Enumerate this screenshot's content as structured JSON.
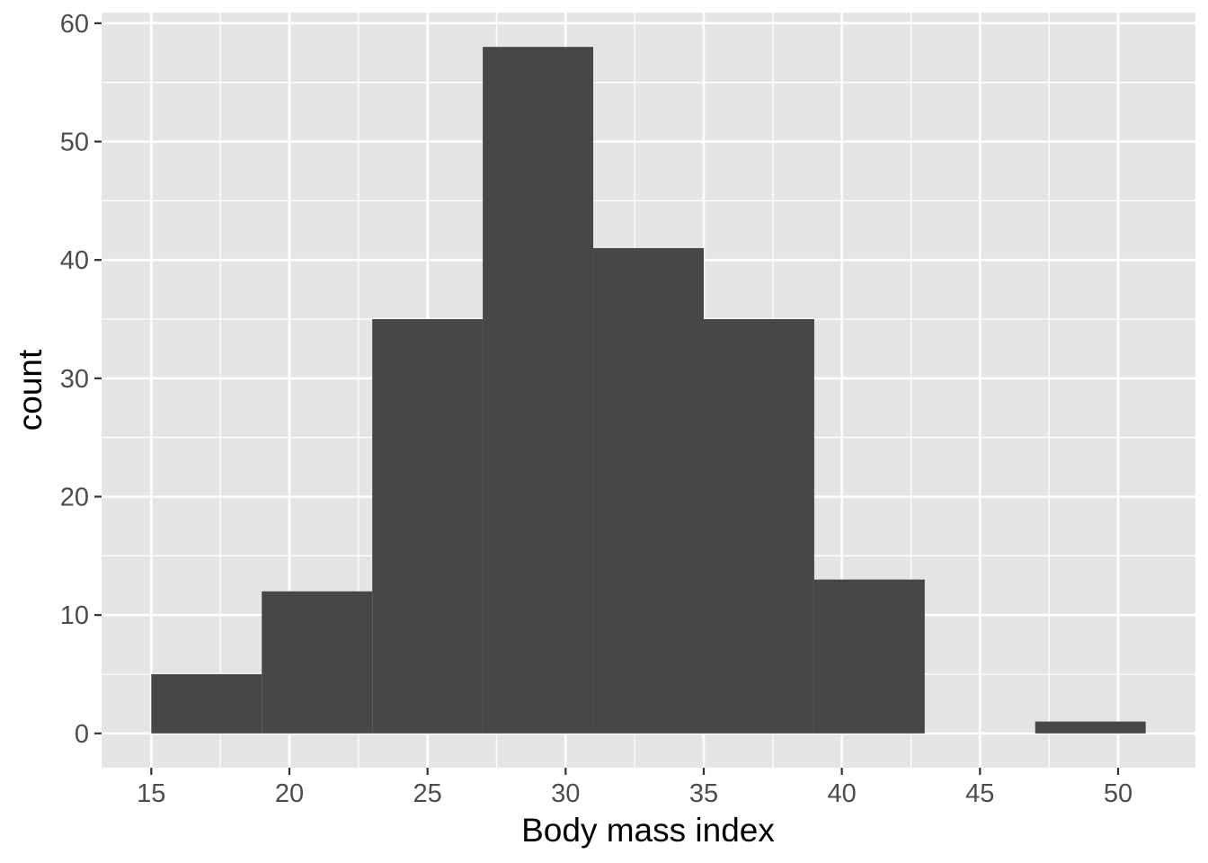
{
  "chart_data": {
    "type": "bar",
    "title": "",
    "xlabel": "Body mass index",
    "ylabel": "count",
    "xlim": [
      13.2,
      52.8
    ],
    "ylim": [
      -2.9,
      60.9
    ],
    "x_ticks": [
      15,
      20,
      25,
      30,
      35,
      40,
      45,
      50
    ],
    "x_tick_labels": [
      "15",
      "20",
      "25",
      "30",
      "35",
      "40",
      "45",
      "50"
    ],
    "y_ticks": [
      0,
      10,
      20,
      30,
      40,
      50,
      60
    ],
    "y_tick_labels": [
      "0",
      "10",
      "20",
      "30",
      "40",
      "50",
      "60"
    ],
    "bins": [
      {
        "x0": 15,
        "x1": 19,
        "count": 5
      },
      {
        "x0": 19,
        "x1": 23,
        "count": 12
      },
      {
        "x0": 23,
        "x1": 27,
        "count": 35
      },
      {
        "x0": 27,
        "x1": 31,
        "count": 58
      },
      {
        "x0": 31,
        "x1": 35,
        "count": 41
      },
      {
        "x0": 35,
        "x1": 39,
        "count": 35
      },
      {
        "x0": 39,
        "x1": 43,
        "count": 13
      },
      {
        "x0": 43,
        "x1": 47,
        "count": 0
      },
      {
        "x0": 47,
        "x1": 51,
        "count": 1
      }
    ],
    "grid": true,
    "colors": {
      "panel_background": "#e5e5e5",
      "grid_line": "#ffffff",
      "bar_fill": "#474747"
    }
  }
}
